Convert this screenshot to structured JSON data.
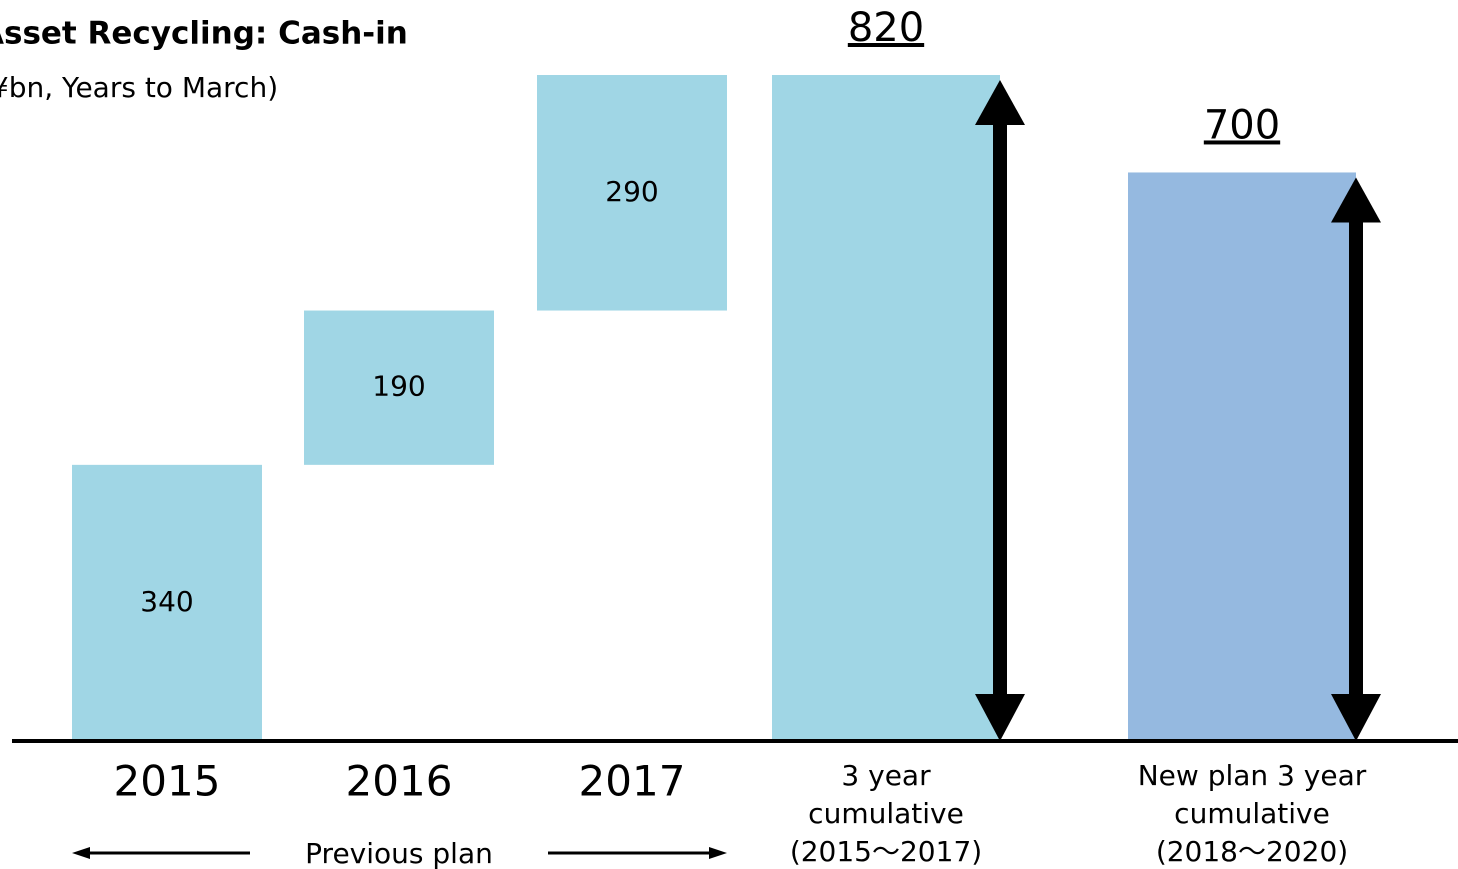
{
  "chart_data": {
    "type": "waterfall",
    "title": "Asset Recycling: Cash-in",
    "subtitle": "(¥bn, Years to March)",
    "categories": [
      [
        "2015"
      ],
      [
        "2016"
      ],
      [
        "2017"
      ],
      [
        "3 year",
        "cumulative",
        "(2015～2017)"
      ],
      [
        "New plan 3 year",
        "cumulative",
        "(2018～2020)"
      ]
    ],
    "values": [
      340,
      190,
      290,
      820,
      700
    ],
    "totals": [
      false,
      false,
      false,
      true,
      true
    ],
    "colors": [
      "#a0d6e5",
      "#a0d6e5",
      "#a0d6e5",
      "#a0d6e5",
      "#95b9e0"
    ],
    "annotation": "Previous plan"
  }
}
